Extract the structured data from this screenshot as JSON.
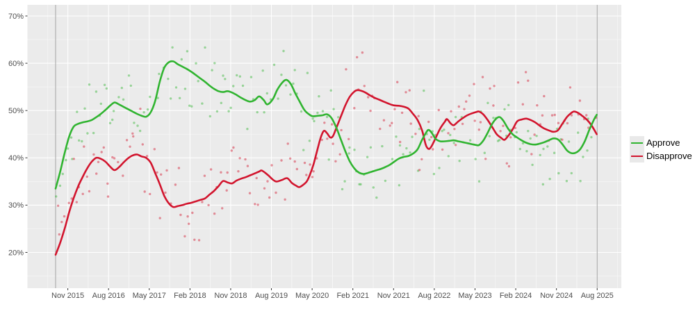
{
  "chart_data": {
    "type": "line",
    "subtype": "scatter_smooth_poll_trend",
    "title": "",
    "xlabel": "",
    "ylabel": "",
    "x_unit": "months since Sep 2015",
    "xlim_months": [
      -6.2,
      125.1
    ],
    "ylim_pct": [
      12.5,
      72.2
    ],
    "grid": "on",
    "legend_position": "right",
    "y_ticks": [
      {
        "v": 70,
        "label": "70%"
      },
      {
        "v": 60,
        "label": "60%"
      },
      {
        "v": 50,
        "label": "50%"
      },
      {
        "v": 40,
        "label": "40%"
      },
      {
        "v": 30,
        "label": "30%"
      },
      {
        "v": 20,
        "label": "20%"
      }
    ],
    "y_minor_ticks": [
      15,
      25,
      35,
      45,
      55,
      65
    ],
    "x_ticks": [
      {
        "label": "Nov 2015",
        "m": 2.7
      },
      {
        "label": "Aug 2016",
        "m": 11.7
      },
      {
        "label": "May 2017",
        "m": 20.7
      },
      {
        "label": "Feb 2018",
        "m": 29.7
      },
      {
        "label": "Nov 2018",
        "m": 38.7
      },
      {
        "label": "Aug 2019",
        "m": 47.7
      },
      {
        "label": "May 2020",
        "m": 56.7
      },
      {
        "label": "Feb 2021",
        "m": 65.7
      },
      {
        "label": "Nov 2021",
        "m": 74.7
      },
      {
        "label": "Aug 2022",
        "m": 83.7
      },
      {
        "label": "May 2023",
        "m": 92.7
      },
      {
        "label": "Feb 2024",
        "m": 101.7
      },
      {
        "label": "Nov 2024",
        "m": 110.7
      },
      {
        "label": "Aug 2025",
        "m": 119.7
      }
    ],
    "vlines_m": [
      0,
      119.7
    ],
    "series": [
      {
        "name": "Approve",
        "color": "#30b430",
        "points": [
          [
            0,
            33.5
          ],
          [
            1,
            37
          ],
          [
            2,
            41
          ],
          [
            3,
            44.5
          ],
          [
            4,
            46.6
          ],
          [
            5,
            47.2
          ],
          [
            6,
            47.5
          ],
          [
            7,
            47.7
          ],
          [
            8,
            48
          ],
          [
            9,
            48.6
          ],
          [
            10,
            49.3
          ],
          [
            11,
            50.1
          ],
          [
            12,
            51
          ],
          [
            13,
            51.7
          ],
          [
            14,
            51.3
          ],
          [
            15,
            50.8
          ],
          [
            16,
            50.3
          ],
          [
            17,
            49.8
          ],
          [
            18,
            49.3
          ],
          [
            19,
            48.9
          ],
          [
            20,
            48.7
          ],
          [
            21,
            49.6
          ],
          [
            22,
            52
          ],
          [
            23,
            56
          ],
          [
            24,
            59
          ],
          [
            25,
            60.2
          ],
          [
            26,
            60.4
          ],
          [
            27,
            59.8
          ],
          [
            28,
            59.3
          ],
          [
            29,
            58.8
          ],
          [
            30,
            58.2
          ],
          [
            31,
            57.5
          ],
          [
            32,
            56.8
          ],
          [
            33,
            56.1
          ],
          [
            34,
            55.3
          ],
          [
            35,
            54.6
          ],
          [
            36,
            54.1
          ],
          [
            37,
            53.9
          ],
          [
            38,
            54.1
          ],
          [
            39,
            53.8
          ],
          [
            40,
            53.3
          ],
          [
            41,
            52.7
          ],
          [
            42,
            52.2
          ],
          [
            43,
            51.9
          ],
          [
            44,
            52.2
          ],
          [
            45,
            53
          ],
          [
            46,
            52.2
          ],
          [
            46.8,
            51.3
          ],
          [
            48,
            52.4
          ],
          [
            49,
            54.4
          ],
          [
            50,
            55.8
          ],
          [
            51,
            56.5
          ],
          [
            52,
            55.6
          ],
          [
            53,
            53.6
          ],
          [
            54,
            51.8
          ],
          [
            55,
            50.1
          ],
          [
            56,
            49.2
          ],
          [
            56.8,
            48.8
          ],
          [
            58,
            48.9
          ],
          [
            59,
            49
          ],
          [
            60,
            49.2
          ],
          [
            61,
            48.4
          ],
          [
            62,
            46.5
          ],
          [
            63,
            44
          ],
          [
            64,
            41.5
          ],
          [
            65,
            39.3
          ],
          [
            66,
            37.8
          ],
          [
            67,
            36.9
          ],
          [
            68,
            36.6
          ],
          [
            69,
            36.8
          ],
          [
            70,
            37.1
          ],
          [
            71,
            37.4
          ],
          [
            72,
            37.7
          ],
          [
            73,
            38.1
          ],
          [
            74,
            38.6
          ],
          [
            75,
            39.3
          ],
          [
            76,
            39.9
          ],
          [
            77,
            40.2
          ],
          [
            78,
            40.4
          ],
          [
            79,
            40.9
          ],
          [
            80,
            41.8
          ],
          [
            81,
            43.8
          ],
          [
            82,
            45.5
          ],
          [
            82.5,
            45.9
          ],
          [
            83.2,
            45.2
          ],
          [
            84,
            44
          ],
          [
            85,
            43.5
          ],
          [
            86,
            43.5
          ],
          [
            87,
            43.6
          ],
          [
            88,
            43.7
          ],
          [
            89,
            43.5
          ],
          [
            90,
            43.3
          ],
          [
            91,
            43.1
          ],
          [
            92,
            42.9
          ],
          [
            93,
            42.7
          ],
          [
            93.6,
            42.7
          ],
          [
            94.5,
            43.6
          ],
          [
            95.5,
            45.3
          ],
          [
            96.5,
            47.2
          ],
          [
            97.5,
            48.4
          ],
          [
            98.2,
            48.6
          ],
          [
            99,
            47.8
          ],
          [
            100,
            46.2
          ],
          [
            101,
            45
          ],
          [
            102,
            44.3
          ],
          [
            103,
            43.7
          ],
          [
            104,
            43.2
          ],
          [
            105,
            42.9
          ],
          [
            106,
            42.8
          ],
          [
            107,
            43
          ],
          [
            108,
            43.3
          ],
          [
            109,
            43.7
          ],
          [
            110,
            44.1
          ],
          [
            111,
            43.9
          ],
          [
            112,
            42.9
          ],
          [
            113,
            41.6
          ],
          [
            114,
            41
          ],
          [
            115,
            41.1
          ],
          [
            116,
            41.9
          ],
          [
            117,
            43.6
          ],
          [
            118,
            46
          ],
          [
            119,
            48.1
          ],
          [
            119.6,
            49.1
          ]
        ]
      },
      {
        "name": "Disapprove",
        "color": "#d2142d",
        "points": [
          [
            0,
            19.5
          ],
          [
            1,
            22
          ],
          [
            2,
            25
          ],
          [
            3,
            28.5
          ],
          [
            4,
            31.5
          ],
          [
            5,
            34
          ],
          [
            6,
            36
          ],
          [
            7,
            37.8
          ],
          [
            8,
            39.2
          ],
          [
            9,
            40
          ],
          [
            10,
            39.8
          ],
          [
            11,
            39.2
          ],
          [
            12,
            38.2
          ],
          [
            13,
            37.4
          ],
          [
            14,
            38
          ],
          [
            15,
            39
          ],
          [
            16,
            39.9
          ],
          [
            17,
            40.5
          ],
          [
            18,
            40.7
          ],
          [
            19,
            40.3
          ],
          [
            20,
            40
          ],
          [
            21,
            39
          ],
          [
            22,
            36.8
          ],
          [
            23,
            34.5
          ],
          [
            24,
            32
          ],
          [
            25,
            30.4
          ],
          [
            26,
            29.6
          ],
          [
            27,
            29.8
          ],
          [
            28,
            30
          ],
          [
            29,
            30.3
          ],
          [
            30,
            30.5
          ],
          [
            31,
            30.8
          ],
          [
            32,
            31.1
          ],
          [
            33,
            31.4
          ],
          [
            34,
            32.2
          ],
          [
            35,
            33
          ],
          [
            36,
            34
          ],
          [
            37,
            35.1
          ],
          [
            38,
            34.8
          ],
          [
            39,
            34.6
          ],
          [
            40,
            35.2
          ],
          [
            41,
            35.6
          ],
          [
            42,
            35.9
          ],
          [
            43,
            36.3
          ],
          [
            44,
            36.7
          ],
          [
            45,
            37.1
          ],
          [
            45.6,
            37.3
          ],
          [
            47,
            36.3
          ],
          [
            48,
            35.4
          ],
          [
            48.8,
            35
          ],
          [
            50,
            35.3
          ],
          [
            51.2,
            35.7
          ],
          [
            52.2,
            34.7
          ],
          [
            53,
            34.2
          ],
          [
            53.8,
            33.8
          ],
          [
            54.6,
            34.2
          ],
          [
            55.5,
            35
          ],
          [
            56.2,
            36.4
          ],
          [
            57,
            38.6
          ],
          [
            57.8,
            41.5
          ],
          [
            58.6,
            44.3
          ],
          [
            59.3,
            45.7
          ],
          [
            60,
            45.2
          ],
          [
            60.7,
            44.3
          ],
          [
            61.3,
            44.6
          ],
          [
            62,
            46.2
          ],
          [
            63,
            48.6
          ],
          [
            64,
            51
          ],
          [
            65,
            52.9
          ],
          [
            66,
            54
          ],
          [
            66.6,
            54.3
          ],
          [
            67.5,
            54.2
          ],
          [
            68.5,
            53.8
          ],
          [
            69.5,
            53.2
          ],
          [
            70.5,
            52.7
          ],
          [
            71.5,
            52.3
          ],
          [
            72.5,
            51.9
          ],
          [
            73.5,
            51.5
          ],
          [
            74.7,
            51.1
          ],
          [
            76,
            51
          ],
          [
            77,
            50.8
          ],
          [
            78,
            50.4
          ],
          [
            79,
            49.3
          ],
          [
            80,
            48
          ],
          [
            81,
            45.8
          ],
          [
            81.8,
            42.8
          ],
          [
            82.4,
            41.9
          ],
          [
            83,
            42.3
          ],
          [
            84,
            44.2
          ],
          [
            85,
            46.2
          ],
          [
            86,
            47.6
          ],
          [
            86.5,
            48.2
          ],
          [
            87.3,
            47.3
          ],
          [
            88,
            46.9
          ],
          [
            89,
            47.7
          ],
          [
            90,
            48.4
          ],
          [
            91,
            49
          ],
          [
            92,
            49.4
          ],
          [
            93,
            49.7
          ],
          [
            93.6,
            49.8
          ],
          [
            94.5,
            49.2
          ],
          [
            95.5,
            48
          ],
          [
            96.5,
            46.5
          ],
          [
            97.5,
            45
          ],
          [
            98.5,
            44.2
          ],
          [
            99.2,
            43.8
          ],
          [
            100,
            44.6
          ],
          [
            101,
            46
          ],
          [
            102,
            47.7
          ],
          [
            103,
            48.1
          ],
          [
            104,
            48.3
          ],
          [
            105,
            48
          ],
          [
            106,
            47.5
          ],
          [
            107,
            46.8
          ],
          [
            108,
            46.2
          ],
          [
            109,
            45.8
          ],
          [
            110,
            45.5
          ],
          [
            111,
            45.8
          ],
          [
            112,
            47.2
          ],
          [
            113,
            48.6
          ],
          [
            114,
            49.5
          ],
          [
            114.6,
            49.8
          ],
          [
            115.5,
            49.5
          ],
          [
            116.5,
            48.8
          ],
          [
            117.5,
            48
          ],
          [
            118.5,
            46.8
          ],
          [
            119.6,
            45
          ]
        ]
      }
    ],
    "scatter_style": {
      "seed": 77,
      "step_months": 0.613,
      "noise_pct": 10.5,
      "drop_rate": 0.12,
      "alpha": 0.45,
      "radius": 1.7,
      "x_jitter": 0.6,
      "min_pct": 13.8,
      "max_pct": 70.8
    }
  },
  "colors": {
    "panel_bg": "#ebebeb",
    "grid_major": "#ffffff",
    "grid_minor": "#ffffff",
    "axis_text": "#4d4d4d",
    "tick_mark": "#333333",
    "vline": "#a0a0a0",
    "legend_text": "#000000",
    "legend_key_bg": "#e9e9e9"
  },
  "legend": {
    "items": [
      {
        "label": "Approve"
      },
      {
        "label": "Disapprove"
      }
    ]
  }
}
